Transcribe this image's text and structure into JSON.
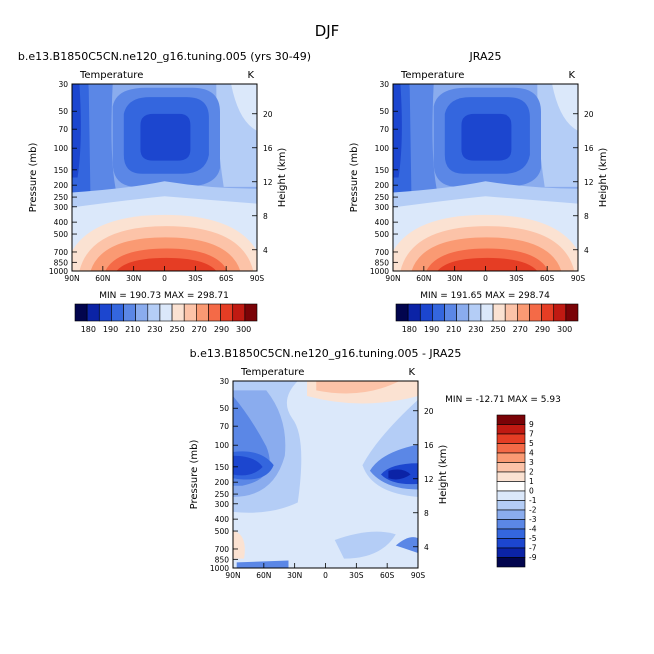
{
  "figure": {
    "title": "DJF"
  },
  "chart_data": [
    {
      "type": "heatmap",
      "title": "b.e13.B1850C5CN.ne120_g16.tuning.005 (yrs 30-49)",
      "left_label": "Temperature",
      "right_label": "K",
      "xlabel": "",
      "ylabel": "Pressure (mb)",
      "ylabel_right": "Height (km)",
      "x_ticks": [
        "90N",
        "60N",
        "30N",
        "0",
        "30S",
        "60S",
        "90S"
      ],
      "y_ticks": [
        "30",
        "50",
        "70",
        "100",
        "150",
        "200",
        "250",
        "300",
        "400",
        "500",
        "700",
        "850",
        "1000"
      ],
      "y_right_ticks": [
        "20",
        "16",
        "12",
        "8",
        "4"
      ],
      "stats": "MIN = 190.73   MAX = 298.71",
      "levels": [
        "180",
        "190",
        "200",
        "210",
        "220",
        "230",
        "240",
        "250",
        "260",
        "270",
        "280",
        "290",
        "300"
      ],
      "level_labels": [
        "180",
        "190",
        "210",
        "230",
        "250",
        "270",
        "290",
        "300"
      ],
      "colors": [
        "#02054e",
        "#0b23a6",
        "#1c46cf",
        "#3466de",
        "#5b87e6",
        "#8aacee",
        "#b4cdf6",
        "#dbe8fa",
        "#fbe2d2",
        "#fcc3a8",
        "#fa9a73",
        "#f46a47",
        "#e53d24",
        "#c01a12",
        "#7a0307"
      ]
    },
    {
      "type": "heatmap",
      "title": "JRA25",
      "left_label": "Temperature",
      "right_label": "K",
      "xlabel": "",
      "ylabel": "Pressure (mb)",
      "ylabel_right": "Height (km)",
      "x_ticks": [
        "90N",
        "60N",
        "30N",
        "0",
        "30S",
        "60S",
        "90S"
      ],
      "y_ticks": [
        "30",
        "50",
        "70",
        "100",
        "150",
        "200",
        "250",
        "300",
        "400",
        "500",
        "700",
        "850",
        "1000"
      ],
      "y_right_ticks": [
        "20",
        "16",
        "12",
        "8",
        "4"
      ],
      "stats": "MIN = 191.65   MAX = 298.74",
      "levels": [
        "180",
        "190",
        "200",
        "210",
        "220",
        "230",
        "240",
        "250",
        "260",
        "270",
        "280",
        "290",
        "300"
      ],
      "level_labels": [
        "180",
        "190",
        "210",
        "230",
        "250",
        "270",
        "290",
        "300"
      ],
      "colors": [
        "#02054e",
        "#0b23a6",
        "#1c46cf",
        "#3466de",
        "#5b87e6",
        "#8aacee",
        "#b4cdf6",
        "#dbe8fa",
        "#fbe2d2",
        "#fcc3a8",
        "#fa9a73",
        "#f46a47",
        "#e53d24",
        "#c01a12",
        "#7a0307"
      ]
    },
    {
      "type": "heatmap",
      "title": "b.e13.B1850C5CN.ne120_g16.tuning.005 - JRA25",
      "left_label": "Temperature",
      "right_label": "K",
      "xlabel": "",
      "ylabel": "Pressure (mb)",
      "ylabel_right": "Height (km)",
      "x_ticks": [
        "90N",
        "60N",
        "30N",
        "0",
        "30S",
        "60S",
        "90S"
      ],
      "y_ticks": [
        "30",
        "50",
        "70",
        "100",
        "150",
        "200",
        "250",
        "300",
        "400",
        "500",
        "700",
        "850",
        "1000"
      ],
      "y_right_ticks": [
        "20",
        "16",
        "12",
        "8",
        "4"
      ],
      "stats": "MIN = -12.71   MAX =    5.93",
      "levels": [
        "-9",
        "-7",
        "-5",
        "-4",
        "-3",
        "-2",
        "-1",
        "0",
        "1",
        "2",
        "3",
        "4",
        "5",
        "7",
        "9"
      ],
      "level_labels": [
        "9",
        "7",
        "5",
        "4",
        "3",
        "2",
        "1",
        "0",
        "-1",
        "-2",
        "-3",
        "-4",
        "-5",
        "-7",
        "-9"
      ],
      "colors": [
        "#7a0307",
        "#c01a12",
        "#e53d24",
        "#f46a47",
        "#fa9a73",
        "#fcc3a8",
        "#fbe2d2",
        "#ffffff",
        "#dbe8fa",
        "#b4cdf6",
        "#8aacee",
        "#5b87e6",
        "#3466de",
        "#1c46cf",
        "#0b23a6",
        "#02054e"
      ]
    }
  ]
}
